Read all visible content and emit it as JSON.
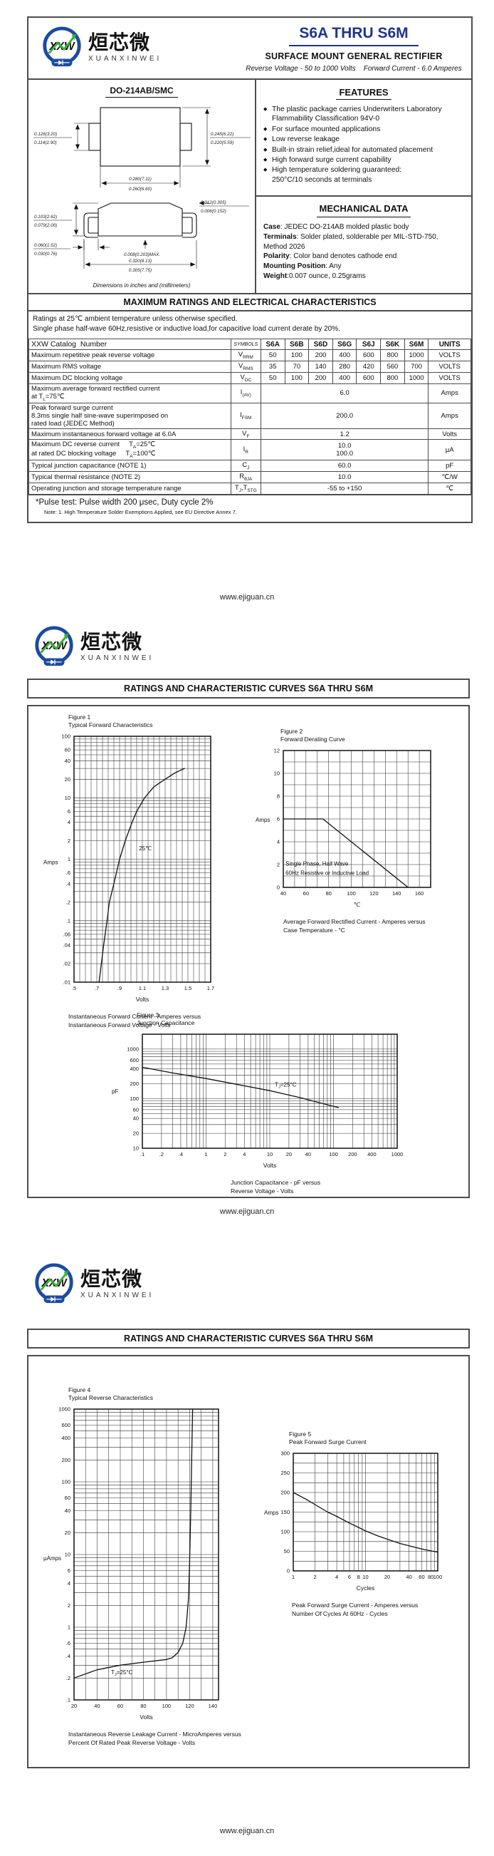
{
  "footer_url": "www.ejiguan.cn",
  "curves_heading": "RATINGS AND CHARACTERISTIC CURVES S6A THRU S6M",
  "logo": {
    "circle_text": "XXW",
    "chinese": "烜芯微",
    "pinyin": "XUANXINWEI",
    "blue": "#1c4ba0",
    "green": "#3fae3c"
  },
  "page1": {
    "title": "S6A THRU S6M",
    "subtitle": "SURFACE MOUNT GENERAL RECTIFIER",
    "tagline": "Reverse Voltage - 50 to 1000 Volts    Forward Current - 6.0 Amperes",
    "package": {
      "name": "DO-214AB/SMC",
      "dims_note": "Dimensions in inches and (millimeters)",
      "dims": [
        {
          "a": "0.126(3.20)",
          "b": "0.114(2.90)"
        },
        {
          "a": "0.245(6.22)",
          "b": "0.220(5.59)"
        },
        {
          "a": "0.280(7.11)",
          "b": "0.260(6.60)"
        },
        {
          "a": "0.012(0.305)",
          "b": "0.006(0.152)"
        },
        {
          "a": "0.103(2.62)",
          "b": "0.079(2.00)"
        },
        {
          "a": "0.060(1.52)",
          "b": "0.030(0.76)"
        },
        {
          "a": "0.008(0.203)MAX."
        },
        {
          "a": "0.320(8.13)",
          "b": "0.305(7.75)"
        }
      ]
    },
    "features": {
      "heading": "FEATURES",
      "items": [
        [
          "The plastic package carries Underwriters Laboratory",
          "Flammability Classification 94V-0"
        ],
        [
          "For surface mounted applications"
        ],
        [
          "Low reverse leakage"
        ],
        [
          "Built-in strain relief,ideal for automated placement"
        ],
        [
          "High forward surge current capability"
        ],
        [
          "High temperature soldering guaranteed:",
          "250°C/10 seconds at terminals"
        ]
      ]
    },
    "mechanical": {
      "heading": "MECHANICAL DATA",
      "lines": [
        {
          "b": "Case",
          "t": ": JEDEC DO-214AB molded plastic body"
        },
        {
          "b": "Terminals",
          "t": ": Solder plated, solderable per MIL-STD-750,"
        },
        {
          "b": "",
          "t": "Method 2026"
        },
        {
          "b": "Polarity",
          "t": ": Color band denotes cathode end"
        },
        {
          "b": "Mounting Position",
          "t": ": Any"
        },
        {
          "b": "Weight",
          "t": ":0.007 ounce, 0.25grams"
        }
      ]
    },
    "ratings": {
      "heading": "MAXIMUM RATINGS AND ELECTRICAL CHARACTERISTICS",
      "note1": "Ratings at 25℃ ambient temperature unless otherwise specified.",
      "note2": "Single phase half-wave 60Hz,resistive or inductive load,for capacitive load current derate by 20%.",
      "col_headers": [
        "XXW Catalog  Number",
        "SYMBOLS",
        "S6A",
        "S6B",
        "S6D",
        "S6G",
        "S6J",
        "S6K",
        "S6M",
        "UNITS"
      ],
      "rows": [
        {
          "param": [
            "Maximum repetitive peak reverse voltage"
          ],
          "symbol": "V_{RRM}",
          "values": [
            "50",
            "100",
            "200",
            "400",
            "600",
            "800",
            "1000"
          ],
          "units": "VOLTS"
        },
        {
          "param": [
            "Maximum RMS voltage"
          ],
          "symbol": "V_{RMS}",
          "values": [
            "35",
            "70",
            "140",
            "280",
            "420",
            "560",
            "700"
          ],
          "units": "VOLTS"
        },
        {
          "param": [
            "Maximum DC blocking voltage"
          ],
          "symbol": "V_{DC}",
          "values": [
            "50",
            "100",
            "200",
            "400",
            "600",
            "800",
            "1000"
          ],
          "units": "VOLTS"
        },
        {
          "param": [
            "Maximum average forward rectified current",
            "at T_{L}=75℃"
          ],
          "symbol": "I_{(AV)}",
          "span": [
            "6.0"
          ],
          "units": "Amps"
        },
        {
          "param": [
            "Peak forward surge current",
            "8.3ms single half sine-wave superimposed on",
            "rated load (JEDEC Method)"
          ],
          "symbol": "I_{FSM}",
          "span": [
            "200.0"
          ],
          "units": "Amps"
        },
        {
          "param": [
            "Maximum instantaneous forward voltage at 6.0A"
          ],
          "symbol": "V_{F}",
          "span": [
            "1.2"
          ],
          "units": "Volts"
        },
        {
          "param": [
            "Maximum DC reverse current     T_{A}=25℃",
            "at rated DC blocking voltage     T_{A}=100℃"
          ],
          "symbol": "I_{R}",
          "span": [
            "10.0",
            "100.0"
          ],
          "units": "μA"
        },
        {
          "param": [
            "Typical junction capacitance (NOTE 1)"
          ],
          "symbol": "C_{J}",
          "span": [
            "60.0"
          ],
          "units": "pF"
        },
        {
          "param": [
            "Typical thermal resistance (NOTE 2)"
          ],
          "symbol": "R_{θJA}",
          "span": [
            "10.0"
          ],
          "units": "℃/W"
        },
        {
          "param": [
            "Operating junction and storage temperature range"
          ],
          "symbol": "T_{J},T_{STG}",
          "span": [
            "-55 to +150"
          ],
          "units": "℃"
        }
      ],
      "pulse_note": "*Pulse test: Pulse width 200 μsec, Duty cycle 2%",
      "note3": "Note:    1.  High Temperature Solder Exemptions Applied, see EU Directive Annex 7."
    }
  },
  "chart_data": [
    {
      "figure": "Figure 1",
      "title": "Typical Forward Characteristics",
      "type": "line",
      "x_axis": {
        "scale": "linear",
        "min": 0.5,
        "max": 1.7,
        "minor": 0.05,
        "ticks": [
          0.5,
          0.7,
          0.9,
          1.1,
          1.3,
          1.5,
          1.7
        ],
        "tick_labels": [
          ".5",
          ".7",
          ".9",
          "1.1",
          "1.3",
          "1.5",
          "1.7"
        ],
        "label": "Volts"
      },
      "y_axis": {
        "scale": "log",
        "min": 0.01,
        "max": 100,
        "ticks": [
          100,
          60,
          40,
          20,
          10,
          6,
          4,
          2,
          1,
          0.6,
          0.4,
          0.2,
          0.1,
          0.06,
          0.04,
          0.02,
          0.01
        ],
        "tick_labels": [
          "100",
          "60",
          "40",
          "20",
          "10",
          "6",
          "4",
          "2",
          "1",
          ".6",
          ".4",
          ".2",
          ".1",
          ".06",
          ".04",
          ".02",
          ".01"
        ],
        "label": "Amps"
      },
      "series": [
        {
          "name": "25℃",
          "points": [
            [
              0.72,
              0.01
            ],
            [
              0.74,
              0.02
            ],
            [
              0.76,
              0.04
            ],
            [
              0.79,
              0.1
            ],
            [
              0.81,
              0.2
            ],
            [
              0.85,
              0.4
            ],
            [
              0.9,
              1
            ],
            [
              0.95,
              2
            ],
            [
              1.01,
              4
            ],
            [
              1.05,
              6
            ],
            [
              1.12,
              10
            ],
            [
              1.2,
              15
            ],
            [
              1.3,
              20
            ],
            [
              1.38,
              25
            ],
            [
              1.47,
              30
            ]
          ]
        }
      ],
      "annotations": [
        {
          "x": 1.07,
          "y": 1.4,
          "text": "25℃"
        }
      ],
      "caption": [
        "Instantaneous Forward Current - Amperes versus",
        "Instantaneous Forward Voltage - Volts"
      ]
    },
    {
      "figure": "Figure 2",
      "title": "Forward Derating Curve",
      "type": "line",
      "x_axis": {
        "scale": "linear",
        "min": 40,
        "max": 170,
        "minor": 10,
        "ticks": [
          40,
          60,
          80,
          100,
          120,
          140,
          160
        ],
        "tick_labels": [
          "40",
          "60",
          "80",
          "100",
          "120",
          "140",
          "160"
        ],
        "label": "℃"
      },
      "y_axis": {
        "scale": "linear",
        "min": 0,
        "max": 12,
        "minor": 1,
        "ticks": [
          0,
          2,
          4,
          6,
          8,
          10,
          12
        ],
        "tick_labels": [
          "0",
          "2",
          "4",
          "6",
          "8",
          "10",
          "12"
        ],
        "label": "Amps"
      },
      "series": [
        {
          "name": "derating",
          "points": [
            [
              40,
              6
            ],
            [
              75,
              6
            ],
            [
              150,
              0
            ]
          ]
        }
      ],
      "annotations": [
        {
          "x": 42,
          "y": 1.9,
          "text": "Single Phase, Half Wave"
        },
        {
          "x": 42,
          "y": 1.1,
          "text": "60Hz Resistive or Inductive Load"
        }
      ],
      "caption": [
        "Average Forward Rectified Current  -  Amperes versus",
        "Case Temperature  - °C"
      ]
    },
    {
      "figure": "Figure 3",
      "title": "Junction Capacitance",
      "type": "line",
      "x_axis": {
        "scale": "log",
        "min": 0.1,
        "max": 1000,
        "ticks": [
          0.1,
          0.2,
          0.4,
          1,
          2,
          4,
          10,
          20,
          40,
          100,
          200,
          400,
          1000
        ],
        "tick_labels": [
          ".1",
          ".2",
          ".4",
          "1",
          "2",
          "4",
          "10",
          "20",
          "40",
          "100",
          "200",
          "400",
          "1000"
        ],
        "label": "Volts"
      },
      "y_axis": {
        "scale": "log",
        "min": 10,
        "max": 2000,
        "ticks": [
          1000,
          600,
          400,
          200,
          100,
          60,
          40,
          20,
          10
        ],
        "tick_labels": [
          "1000",
          "600",
          "400",
          "200",
          "100",
          "60",
          "40",
          "20",
          "10"
        ],
        "label": "pF"
      },
      "series": [
        {
          "name": "TJ=25C",
          "points": [
            [
              0.1,
              430
            ],
            [
              0.3,
              330
            ],
            [
              1,
              255
            ],
            [
              3,
              195
            ],
            [
              10,
              145
            ],
            [
              30,
              105
            ],
            [
              100,
              70
            ],
            [
              120,
              66
            ]
          ]
        }
      ],
      "annotations": [
        {
          "x": 12,
          "y": 175,
          "text": "T_{J}=25°C"
        }
      ],
      "caption": [
        "Junction Capacitance - pF versus",
        "Reverse Voltage - Volts"
      ]
    },
    {
      "figure": "Figure 4",
      "title": "Typical Reverse Characteristics",
      "type": "line",
      "x_axis": {
        "scale": "linear",
        "min": 20,
        "max": 145,
        "minor": 10,
        "ticks": [
          20,
          40,
          60,
          80,
          100,
          120,
          140
        ],
        "tick_labels": [
          "20",
          "40",
          "60",
          "80",
          "100",
          "120",
          "140"
        ],
        "label": "Volts"
      },
      "y_axis": {
        "scale": "log",
        "min": 0.1,
        "max": 1000,
        "ticks": [
          1000,
          600,
          400,
          200,
          100,
          60,
          40,
          20,
          10,
          6,
          4,
          2,
          1,
          0.6,
          0.4,
          0.2,
          0.1
        ],
        "tick_labels": [
          "1000",
          "600",
          "400",
          "200",
          "100",
          "60",
          "40",
          "20",
          "10",
          "6",
          "4",
          "2",
          "1",
          ".6",
          ".4",
          ".2",
          ".1"
        ],
        "label": "μAmps"
      },
      "series": [
        {
          "name": "TJ=25C",
          "points": [
            [
              20,
              0.2
            ],
            [
              40,
              0.26
            ],
            [
              60,
              0.3
            ],
            [
              80,
              0.33
            ],
            [
              100,
              0.36
            ],
            [
              105,
              0.38
            ],
            [
              110,
              0.45
            ],
            [
              114,
              0.6
            ],
            [
              117,
              1
            ],
            [
              119,
              2.5
            ],
            [
              120,
              8
            ],
            [
              121,
              40
            ],
            [
              122,
              300
            ],
            [
              122.6,
              1000
            ]
          ]
        }
      ],
      "annotations": [
        {
          "x": 52,
          "y": 0.225,
          "text": "T_{J}=25°C"
        }
      ],
      "caption": [
        "Instantaneous Reverse Leakage Current - MicroAmperes versus",
        "Percent Of Rated Peak Reverse Voltage - Volts"
      ]
    },
    {
      "figure": "Figure 5",
      "title": "Peak Forward Surge Current",
      "type": "line",
      "x_axis": {
        "scale": "log",
        "min": 1,
        "max": 100,
        "ticks": [
          1,
          2,
          4,
          6,
          8,
          10,
          20,
          40,
          60,
          80,
          100
        ],
        "tick_labels": [
          "1",
          "2",
          "4",
          "6",
          "8",
          "10",
          "20",
          "40",
          "60",
          "80",
          "100"
        ],
        "label": "Cycles"
      },
      "y_axis": {
        "scale": "linear",
        "min": 0,
        "max": 300,
        "minor": 25,
        "ticks": [
          0,
          50,
          100,
          150,
          200,
          250,
          300
        ],
        "tick_labels": [
          "0",
          "50",
          "100",
          "150",
          "200",
          "250",
          "300"
        ],
        "label": "Amps"
      },
      "series": [
        {
          "name": "surge",
          "points": [
            [
              1,
              200
            ],
            [
              1.5,
              183
            ],
            [
              2,
              169
            ],
            [
              3,
              150
            ],
            [
              4,
              139
            ],
            [
              6,
              122
            ],
            [
              8,
              111
            ],
            [
              10,
              102
            ],
            [
              15,
              89
            ],
            [
              20,
              81
            ],
            [
              30,
              70
            ],
            [
              40,
              64
            ],
            [
              60,
              56
            ],
            [
              80,
              51
            ],
            [
              100,
              48
            ]
          ]
        }
      ],
      "annotations": [],
      "caption": [
        "Peak Forward Surge Current - Amperes versus",
        "Number Of Cycles At 60Hz - Cycles"
      ]
    }
  ]
}
